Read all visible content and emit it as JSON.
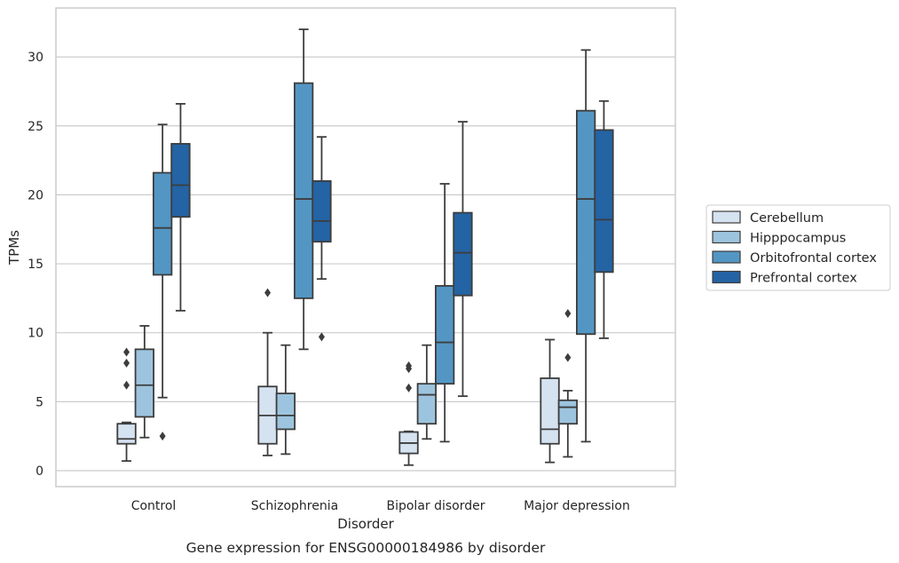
{
  "chart_data": {
    "type": "box",
    "caption": "Gene expression for ENSG00000184986 by disorder",
    "xlabel": "Disorder",
    "ylabel": "TPMs",
    "ylim": [
      -1.1,
      33.3
    ],
    "yticks": [
      0,
      5,
      10,
      15,
      20,
      25,
      30
    ],
    "grid": "horizontal",
    "legend_position": "right",
    "categories": [
      "Control",
      "Schizophrenia",
      "Bipolar disorder",
      "Major depression"
    ],
    "series": [
      {
        "name": "Cerebellum",
        "color": "#d5e2f0",
        "boxes": [
          {
            "whislo": 0.7,
            "q1": 1.95,
            "med": 2.3,
            "q3": 3.4,
            "whishi": 3.5,
            "fliers": [
              6.2,
              7.8,
              8.6
            ]
          },
          {
            "whislo": 1.1,
            "q1": 1.95,
            "med": 4.0,
            "q3": 6.1,
            "whishi": 10.0,
            "fliers": [
              12.9
            ]
          },
          {
            "whislo": 0.4,
            "q1": 1.25,
            "med": 2.0,
            "q3": 2.8,
            "whishi": 2.85,
            "fliers": [
              6.0,
              7.4,
              7.6
            ]
          },
          {
            "whislo": 0.6,
            "q1": 1.95,
            "med": 3.0,
            "q3": 6.7,
            "whishi": 9.5,
            "fliers": []
          }
        ]
      },
      {
        "name": "Hipppocampus",
        "color": "#9dc4de",
        "boxes": [
          {
            "whislo": 2.4,
            "q1": 3.9,
            "med": 6.2,
            "q3": 8.8,
            "whishi": 10.5,
            "fliers": []
          },
          {
            "whislo": 1.2,
            "q1": 3.0,
            "med": 4.0,
            "q3": 5.6,
            "whishi": 9.1,
            "fliers": []
          },
          {
            "whislo": 2.3,
            "q1": 3.4,
            "med": 5.5,
            "q3": 6.3,
            "whishi": 9.1,
            "fliers": []
          },
          {
            "whislo": 1.0,
            "q1": 3.4,
            "med": 4.6,
            "q3": 5.1,
            "whishi": 5.8,
            "fliers": [
              8.2,
              11.4
            ]
          }
        ]
      },
      {
        "name": "Orbitofrontal cortex",
        "color": "#5396c4",
        "boxes": [
          {
            "whislo": 5.3,
            "q1": 14.2,
            "med": 17.6,
            "q3": 21.6,
            "whishi": 25.1,
            "fliers": [
              2.5
            ]
          },
          {
            "whislo": 8.8,
            "q1": 12.5,
            "med": 19.7,
            "q3": 28.1,
            "whishi": 32.0,
            "fliers": []
          },
          {
            "whislo": 2.1,
            "q1": 6.3,
            "med": 9.3,
            "q3": 13.4,
            "whishi": 20.8,
            "fliers": []
          },
          {
            "whislo": 2.1,
            "q1": 9.9,
            "med": 19.7,
            "q3": 26.1,
            "whishi": 30.5,
            "fliers": []
          }
        ]
      },
      {
        "name": "Prefrontal cortex",
        "color": "#2463a4",
        "boxes": [
          {
            "whislo": 11.6,
            "q1": 18.4,
            "med": 20.7,
            "q3": 23.7,
            "whishi": 26.6,
            "fliers": []
          },
          {
            "whislo": 13.9,
            "q1": 16.6,
            "med": 18.1,
            "q3": 21.0,
            "whishi": 24.2,
            "fliers": [
              9.7
            ]
          },
          {
            "whislo": 5.4,
            "q1": 12.7,
            "med": 15.8,
            "q3": 18.7,
            "whishi": 25.3,
            "fliers": []
          },
          {
            "whislo": 9.6,
            "q1": 14.4,
            "med": 18.2,
            "q3": 24.7,
            "whishi": 26.8,
            "fliers": []
          }
        ]
      }
    ]
  }
}
